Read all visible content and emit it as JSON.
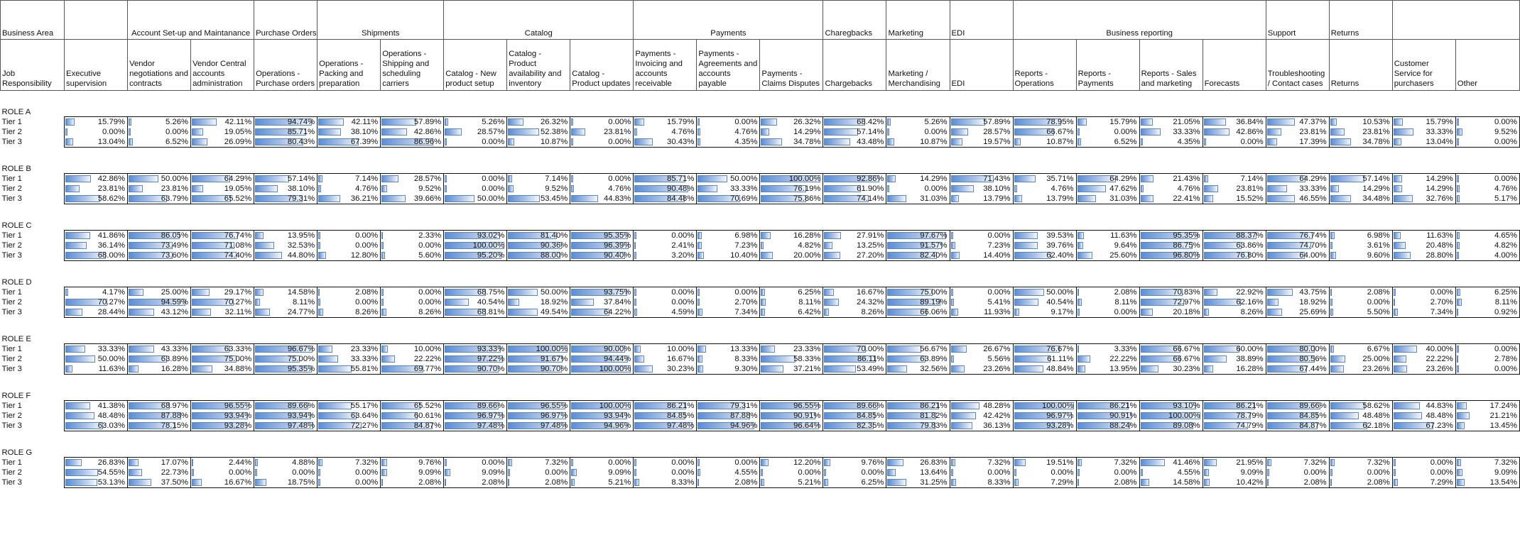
{
  "header": {
    "area_label": "Business Area",
    "resp_label": "Job Responsibility",
    "groups": [
      {
        "label": "",
        "span": 1,
        "align": "left"
      },
      {
        "label": "Account Set-up and Maintanance",
        "span": 2,
        "align": "center"
      },
      {
        "label": "Purchase Orders",
        "span": 1,
        "align": "left"
      },
      {
        "label": "Shipments",
        "span": 2,
        "align": "center"
      },
      {
        "label": "Catalog",
        "span": 3,
        "align": "center"
      },
      {
        "label": "Payments",
        "span": 3,
        "align": "center"
      },
      {
        "label": "Charegbacks",
        "span": 1,
        "align": "left"
      },
      {
        "label": "Marketing",
        "span": 1,
        "align": "left"
      },
      {
        "label": "EDI",
        "span": 1,
        "align": "left"
      },
      {
        "label": "Business reporting",
        "span": 4,
        "align": "center"
      },
      {
        "label": "Support",
        "span": 1,
        "align": "left"
      },
      {
        "label": "Returns",
        "span": 1,
        "align": "left"
      },
      {
        "label": "",
        "span": 2,
        "align": "left"
      }
    ],
    "columns": [
      "Executive supervision",
      "Vendor negotiations and contracts",
      "Vendor Central accounts administration",
      "Operations - Purchase orders",
      "Operations - Packing and preparation",
      "Operations - Shipping and scheduling carriers",
      "Catalog - New product setup",
      "Catalog - Product availability and inventory",
      "Catalog - Product updates",
      "Payments - Invoicing and accounts receivable",
      "Payments - Agreements and accounts payable",
      "Payments - Claims Disputes",
      "Chargebacks",
      "Marketing / Merchandising",
      "EDI",
      "Reports - Operations",
      "Reports - Payments",
      "Reports - Sales and marketing",
      "Forecasts",
      "Troubleshooting / Contact cases",
      "Returns",
      "Customer Service for purchasers",
      "Other"
    ]
  },
  "roles": [
    {
      "name": "ROLE A",
      "tiers": [
        {
          "label": "Tier 1",
          "values": [
            "15.79%",
            "5.26%",
            "42.11%",
            "94.74%",
            "42.11%",
            "57.89%",
            "5.26%",
            "26.32%",
            "0.00%",
            "15.79%",
            "0.00%",
            "26.32%",
            "68.42%",
            "5.26%",
            "57.89%",
            "78.95%",
            "15.79%",
            "21.05%",
            "36.84%",
            "47.37%",
            "10.53%",
            "15.79%",
            "0.00%"
          ]
        },
        {
          "label": "Tier 2",
          "values": [
            "0.00%",
            "0.00%",
            "19.05%",
            "85.71%",
            "38.10%",
            "42.86%",
            "28.57%",
            "52.38%",
            "23.81%",
            "4.76%",
            "4.76%",
            "14.29%",
            "57.14%",
            "0.00%",
            "28.57%",
            "66.67%",
            "0.00%",
            "33.33%",
            "42.86%",
            "23.81%",
            "23.81%",
            "33.33%",
            "9.52%"
          ]
        },
        {
          "label": "Tier 3",
          "values": [
            "13.04%",
            "6.52%",
            "26.09%",
            "80.43%",
            "67.39%",
            "86.96%",
            "0.00%",
            "10.87%",
            "0.00%",
            "30.43%",
            "4.35%",
            "34.78%",
            "43.48%",
            "10.87%",
            "19.57%",
            "10.87%",
            "6.52%",
            "4.35%",
            "0.00%",
            "17.39%",
            "34.78%",
            "13.04%",
            "0.00%"
          ]
        }
      ]
    },
    {
      "name": "ROLE B",
      "tiers": [
        {
          "label": "Tier 1",
          "values": [
            "42.86%",
            "50.00%",
            "64.29%",
            "57.14%",
            "7.14%",
            "28.57%",
            "0.00%",
            "7.14%",
            "0.00%",
            "85.71%",
            "50.00%",
            "100.00%",
            "92.86%",
            "14.29%",
            "71.43%",
            "35.71%",
            "64.29%",
            "21.43%",
            "7.14%",
            "64.29%",
            "57.14%",
            "14.29%",
            "0.00%"
          ]
        },
        {
          "label": "Tier 2",
          "values": [
            "23.81%",
            "23.81%",
            "19.05%",
            "38.10%",
            "4.76%",
            "9.52%",
            "0.00%",
            "9.52%",
            "4.76%",
            "90.48%",
            "33.33%",
            "76.19%",
            "61.90%",
            "0.00%",
            "38.10%",
            "4.76%",
            "47.62%",
            "4.76%",
            "23.81%",
            "33.33%",
            "14.29%",
            "14.29%",
            "4.76%"
          ]
        },
        {
          "label": "Tier 3",
          "values": [
            "58.62%",
            "63.79%",
            "65.52%",
            "79.31%",
            "36.21%",
            "39.66%",
            "50.00%",
            "53.45%",
            "44.83%",
            "84.48%",
            "70.69%",
            "75.86%",
            "74.14%",
            "31.03%",
            "13.79%",
            "13.79%",
            "31.03%",
            "22.41%",
            "15.52%",
            "46.55%",
            "34.48%",
            "32.76%",
            "5.17%"
          ]
        }
      ]
    },
    {
      "name": "ROLE C",
      "tiers": [
        {
          "label": "Tier 1",
          "values": [
            "41.86%",
            "86.05%",
            "76.74%",
            "13.95%",
            "0.00%",
            "2.33%",
            "93.02%",
            "81.40%",
            "95.35%",
            "0.00%",
            "6.98%",
            "16.28%",
            "27.91%",
            "97.67%",
            "0.00%",
            "39.53%",
            "11.63%",
            "95.35%",
            "88.37%",
            "76.74%",
            "6.98%",
            "11.63%",
            "4.65%"
          ]
        },
        {
          "label": "Tier 2",
          "values": [
            "36.14%",
            "73.49%",
            "71.08%",
            "32.53%",
            "0.00%",
            "0.00%",
            "100.00%",
            "90.36%",
            "96.39%",
            "2.41%",
            "7.23%",
            "4.82%",
            "13.25%",
            "91.57%",
            "7.23%",
            "39.76%",
            "9.64%",
            "86.75%",
            "63.86%",
            "74.70%",
            "3.61%",
            "20.48%",
            "4.82%"
          ]
        },
        {
          "label": "Tier 3",
          "values": [
            "68.00%",
            "73.60%",
            "74.40%",
            "44.80%",
            "12.80%",
            "5.60%",
            "95.20%",
            "88.00%",
            "90.40%",
            "3.20%",
            "10.40%",
            "20.00%",
            "27.20%",
            "82.40%",
            "14.40%",
            "62.40%",
            "25.60%",
            "96.80%",
            "76.80%",
            "64.00%",
            "9.60%",
            "28.80%",
            "4.00%"
          ]
        }
      ]
    },
    {
      "name": "ROLE D",
      "tiers": [
        {
          "label": "Tier 1",
          "values": [
            "4.17%",
            "25.00%",
            "29.17%",
            "14.58%",
            "2.08%",
            "0.00%",
            "68.75%",
            "50.00%",
            "93.75%",
            "0.00%",
            "0.00%",
            "6.25%",
            "16.67%",
            "75.00%",
            "0.00%",
            "50.00%",
            "2.08%",
            "70.83%",
            "22.92%",
            "43.75%",
            "2.08%",
            "0.00%",
            "6.25%"
          ]
        },
        {
          "label": "Tier 2",
          "values": [
            "70.27%",
            "94.59%",
            "70.27%",
            "8.11%",
            "0.00%",
            "0.00%",
            "40.54%",
            "18.92%",
            "37.84%",
            "0.00%",
            "2.70%",
            "8.11%",
            "24.32%",
            "89.19%",
            "5.41%",
            "40.54%",
            "8.11%",
            "72.97%",
            "62.16%",
            "18.92%",
            "0.00%",
            "2.70%",
            "8.11%"
          ]
        },
        {
          "label": "Tier 3",
          "values": [
            "28.44%",
            "43.12%",
            "32.11%",
            "24.77%",
            "8.26%",
            "8.26%",
            "68.81%",
            "49.54%",
            "64.22%",
            "4.59%",
            "7.34%",
            "6.42%",
            "8.26%",
            "66.06%",
            "11.93%",
            "9.17%",
            "0.00%",
            "20.18%",
            "8.26%",
            "25.69%",
            "5.50%",
            "7.34%",
            "0.92%"
          ]
        }
      ]
    },
    {
      "name": "ROLE E",
      "tiers": [
        {
          "label": "Tier 1",
          "values": [
            "33.33%",
            "43.33%",
            "63.33%",
            "96.67%",
            "23.33%",
            "10.00%",
            "93.33%",
            "100.00%",
            "90.00%",
            "10.00%",
            "13.33%",
            "23.33%",
            "70.00%",
            "56.67%",
            "26.67%",
            "76.67%",
            "3.33%",
            "66.67%",
            "60.00%",
            "80.00%",
            "6.67%",
            "40.00%",
            "0.00%"
          ]
        },
        {
          "label": "Tier 2",
          "values": [
            "50.00%",
            "63.89%",
            "75.00%",
            "75.00%",
            "33.33%",
            "22.22%",
            "97.22%",
            "91.67%",
            "94.44%",
            "16.67%",
            "8.33%",
            "58.33%",
            "86.11%",
            "63.89%",
            "5.56%",
            "61.11%",
            "22.22%",
            "66.67%",
            "38.89%",
            "80.56%",
            "25.00%",
            "22.22%",
            "2.78%"
          ]
        },
        {
          "label": "Tier 3",
          "values": [
            "11.63%",
            "16.28%",
            "34.88%",
            "95.35%",
            "55.81%",
            "69.77%",
            "90.70%",
            "90.70%",
            "100.00%",
            "30.23%",
            "9.30%",
            "37.21%",
            "53.49%",
            "32.56%",
            "23.26%",
            "48.84%",
            "13.95%",
            "30.23%",
            "16.28%",
            "67.44%",
            "23.26%",
            "23.26%",
            "0.00%"
          ]
        }
      ]
    },
    {
      "name": "ROLE F",
      "tiers": [
        {
          "label": "Tier 1",
          "values": [
            "41.38%",
            "68.97%",
            "96.55%",
            "89.66%",
            "55.17%",
            "65.52%",
            "89.66%",
            "96.55%",
            "100.00%",
            "86.21%",
            "79.31%",
            "96.55%",
            "89.66%",
            "86.21%",
            "48.28%",
            "100.00%",
            "86.21%",
            "93.10%",
            "86.21%",
            "89.66%",
            "58.62%",
            "44.83%",
            "17.24%"
          ]
        },
        {
          "label": "Tier 2",
          "values": [
            "48.48%",
            "87.88%",
            "93.94%",
            "93.94%",
            "63.64%",
            "60.61%",
            "96.97%",
            "96.97%",
            "93.94%",
            "84.85%",
            "87.88%",
            "90.91%",
            "84.85%",
            "81.82%",
            "42.42%",
            "96.97%",
            "90.91%",
            "100.00%",
            "78.79%",
            "84.85%",
            "48.48%",
            "48.48%",
            "21.21%"
          ]
        },
        {
          "label": "Tier 3",
          "values": [
            "63.03%",
            "78.15%",
            "93.28%",
            "97.48%",
            "72.27%",
            "84.87%",
            "97.48%",
            "97.48%",
            "94.96%",
            "97.48%",
            "94.96%",
            "96.64%",
            "82.35%",
            "79.83%",
            "36.13%",
            "93.28%",
            "88.24%",
            "89.08%",
            "74.79%",
            "84.87%",
            "62.18%",
            "67.23%",
            "13.45%"
          ]
        }
      ]
    },
    {
      "name": "ROLE G",
      "tiers": [
        {
          "label": "Tier 1",
          "values": [
            "26.83%",
            "17.07%",
            "2.44%",
            "4.88%",
            "7.32%",
            "9.76%",
            "0.00%",
            "7.32%",
            "0.00%",
            "0.00%",
            "0.00%",
            "12.20%",
            "9.76%",
            "26.83%",
            "7.32%",
            "19.51%",
            "7.32%",
            "41.46%",
            "21.95%",
            "7.32%",
            "7.32%",
            "0.00%",
            "7.32%"
          ]
        },
        {
          "label": "Tier 2",
          "values": [
            "54.55%",
            "22.73%",
            "0.00%",
            "0.00%",
            "0.00%",
            "9.09%",
            "9.09%",
            "0.00%",
            "9.09%",
            "0.00%",
            "4.55%",
            "0.00%",
            "0.00%",
            "13.64%",
            "0.00%",
            "0.00%",
            "0.00%",
            "4.55%",
            "9.09%",
            "0.00%",
            "0.00%",
            "0.00%",
            "9.09%"
          ]
        },
        {
          "label": "Tier 3",
          "values": [
            "53.13%",
            "37.50%",
            "16.67%",
            "18.75%",
            "0.00%",
            "2.08%",
            "2.08%",
            "2.08%",
            "5.21%",
            "8.33%",
            "2.08%",
            "5.21%",
            "6.25%",
            "31.25%",
            "8.33%",
            "7.29%",
            "2.08%",
            "14.58%",
            "10.42%",
            "2.08%",
            "2.08%",
            "7.29%",
            "13.54%"
          ]
        }
      ]
    }
  ]
}
